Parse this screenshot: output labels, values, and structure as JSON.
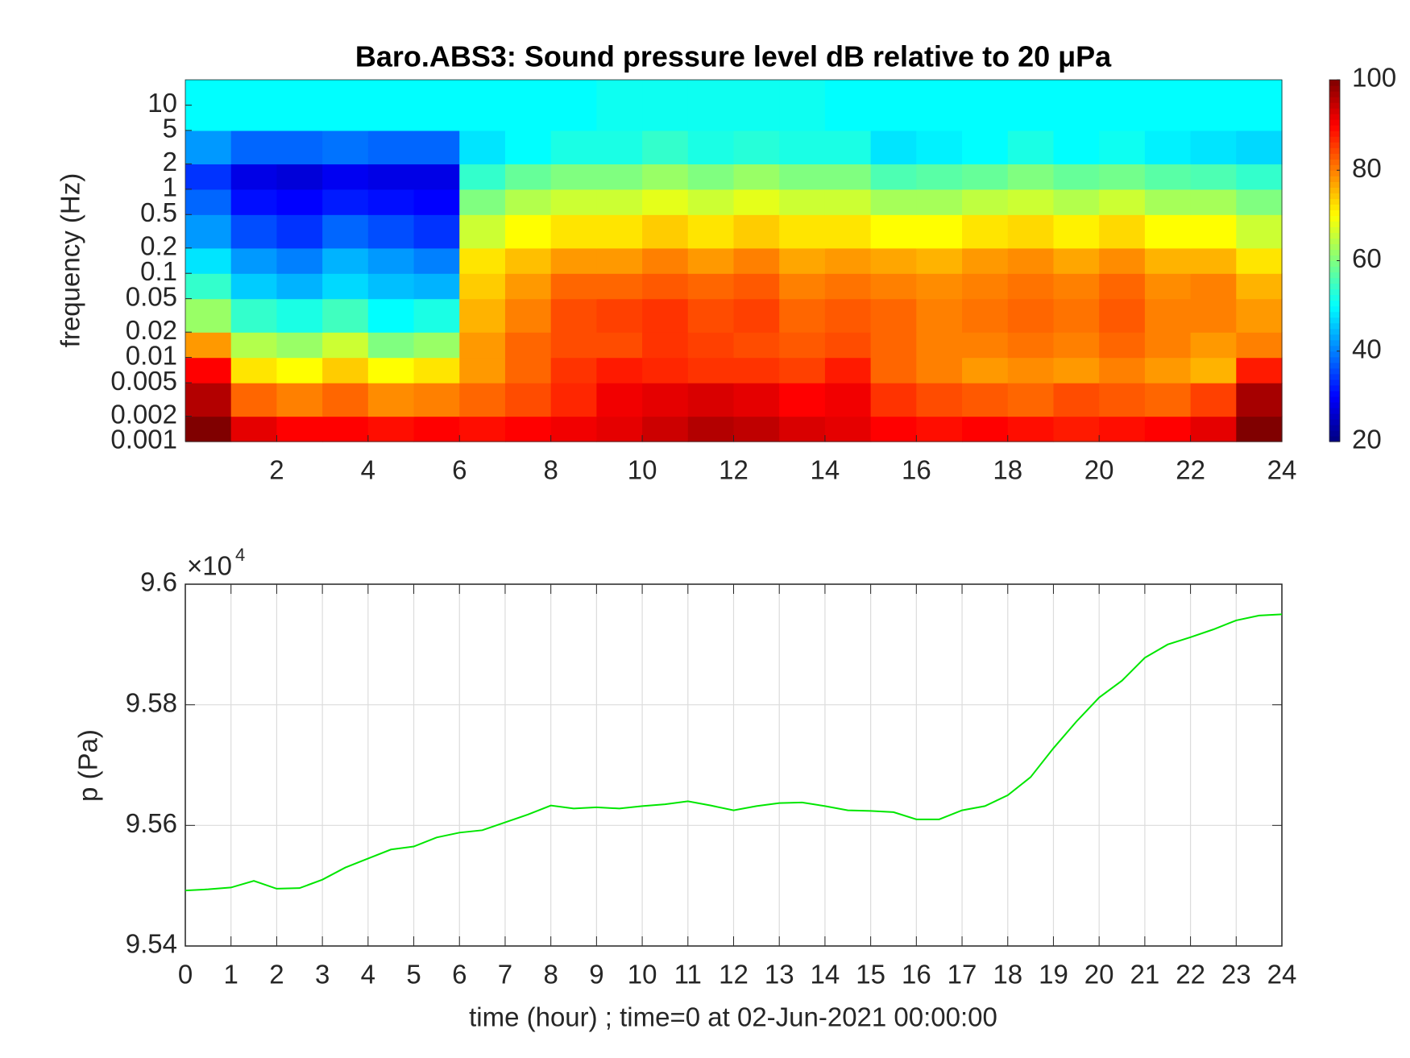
{
  "chart_data": [
    {
      "type": "heatmap",
      "title": "Baro.ABS3: Sound pressure level dB relative to 20 μPa",
      "ylabel": "frequency (Hz)",
      "colormap": "jet",
      "log_y": true,
      "xlim": [
        0,
        24
      ],
      "xticks": [
        2,
        4,
        6,
        8,
        10,
        12,
        14,
        16,
        18,
        20,
        22,
        24
      ],
      "ylim": [
        0.001,
        20
      ],
      "yticks": [
        0.001,
        0.002,
        0.005,
        0.01,
        0.02,
        0.05,
        0.1,
        0.2,
        0.5,
        1,
        2,
        5,
        10
      ],
      "clim": [
        20,
        100
      ],
      "cticks": [
        20,
        40,
        60,
        80,
        100
      ],
      "xbins": [
        0,
        1,
        2,
        3,
        4,
        5,
        6,
        7,
        8,
        9,
        10,
        11,
        12,
        13,
        14,
        15,
        16,
        17,
        18,
        19,
        20,
        21,
        22,
        23,
        24
      ],
      "ybins": [
        0.001,
        0.002,
        0.005,
        0.01,
        0.02,
        0.05,
        0.1,
        0.2,
        0.5,
        1,
        2,
        5,
        20
      ],
      "z": [
        [
          100,
          92,
          90,
          90,
          89,
          90,
          89,
          90,
          91,
          92,
          94,
          96,
          95,
          93,
          92,
          90,
          89,
          90,
          89,
          88,
          89,
          90,
          92,
          100
        ],
        [
          96,
          82,
          80,
          82,
          79,
          80,
          82,
          84,
          87,
          91,
          92,
          93,
          92,
          90,
          91,
          86,
          84,
          83,
          82,
          84,
          83,
          82,
          85,
          97
        ],
        [
          90,
          72,
          70,
          74,
          70,
          72,
          78,
          82,
          86,
          88,
          87,
          86,
          86,
          85,
          88,
          82,
          80,
          78,
          79,
          78,
          80,
          78,
          76,
          88
        ],
        [
          78,
          64,
          62,
          66,
          60,
          62,
          78,
          82,
          84,
          84,
          86,
          85,
          84,
          83,
          84,
          82,
          80,
          80,
          81,
          80,
          82,
          80,
          78,
          80
        ],
        [
          62,
          54,
          52,
          55,
          50,
          52,
          76,
          80,
          84,
          85,
          86,
          84,
          85,
          82,
          83,
          82,
          80,
          81,
          82,
          81,
          83,
          80,
          80,
          78
        ],
        [
          54,
          46,
          44,
          47,
          45,
          44,
          74,
          78,
          82,
          82,
          83,
          82,
          83,
          80,
          81,
          80,
          79,
          80,
          81,
          80,
          82,
          79,
          80,
          76
        ],
        [
          48,
          42,
          40,
          44,
          42,
          40,
          72,
          75,
          78,
          78,
          80,
          78,
          80,
          77,
          78,
          77,
          76,
          78,
          79,
          77,
          79,
          76,
          76,
          72
        ],
        [
          42,
          36,
          34,
          38,
          36,
          34,
          66,
          70,
          72,
          72,
          74,
          72,
          74,
          72,
          72,
          70,
          70,
          72,
          73,
          71,
          73,
          70,
          70,
          66
        ],
        [
          38,
          31,
          30,
          32,
          31,
          30,
          60,
          64,
          66,
          66,
          68,
          66,
          68,
          66,
          66,
          63,
          63,
          65,
          66,
          64,
          66,
          63,
          63,
          60
        ],
        [
          34,
          28,
          27,
          29,
          28,
          28,
          54,
          58,
          60,
          60,
          62,
          60,
          62,
          60,
          60,
          56,
          57,
          58,
          60,
          58,
          59,
          57,
          56,
          54
        ],
        [
          42,
          38,
          38,
          39,
          38,
          38,
          48,
          50,
          52,
          52,
          54,
          52,
          53,
          52,
          52,
          48,
          49,
          50,
          52,
          50,
          51,
          49,
          48,
          47
        ],
        [
          50,
          50,
          50,
          50,
          50,
          50,
          50,
          50,
          50,
          51,
          51,
          51,
          51,
          51,
          50,
          50,
          50,
          50,
          50,
          50,
          50,
          50,
          50,
          50
        ]
      ]
    },
    {
      "type": "line",
      "xlabel": "time (hour) ; time=0 at 02-Jun-2021 00:00:00",
      "ylabel": "p (Pa)",
      "y_multiplier": {
        "base": "×10",
        "exponent": "4"
      },
      "grid": true,
      "xlim": [
        0,
        24
      ],
      "xticks": [
        0,
        1,
        2,
        3,
        4,
        5,
        6,
        7,
        8,
        9,
        10,
        11,
        12,
        13,
        14,
        15,
        16,
        17,
        18,
        19,
        20,
        21,
        22,
        23,
        24
      ],
      "ylim": [
        9.54,
        9.6
      ],
      "yticks": [
        9.54,
        9.56,
        9.58,
        9.6
      ],
      "color": "#00e600",
      "x": [
        0,
        0.5,
        1,
        1.5,
        2,
        2.5,
        3,
        3.5,
        4,
        4.5,
        5,
        5.5,
        6,
        6.5,
        7,
        7.5,
        8,
        8.5,
        9,
        9.5,
        10,
        10.5,
        11,
        11.5,
        12,
        12.5,
        13,
        13.5,
        14,
        14.5,
        15,
        15.5,
        16,
        16.5,
        17,
        17.5,
        18,
        18.5,
        19,
        19.5,
        20,
        20.5,
        21,
        21.5,
        22,
        22.5,
        23,
        23.5,
        24
      ],
      "values": [
        9.5492,
        9.5494,
        9.5497,
        9.5508,
        9.5495,
        9.5496,
        9.551,
        9.553,
        9.5545,
        9.556,
        9.5565,
        9.558,
        9.5588,
        9.5592,
        9.5605,
        9.5618,
        9.5633,
        9.5628,
        9.563,
        9.5628,
        9.5632,
        9.5635,
        9.564,
        9.5633,
        9.5625,
        9.5632,
        9.5637,
        9.5638,
        9.5632,
        9.5625,
        9.5624,
        9.5622,
        9.561,
        9.561,
        9.5625,
        9.5632,
        9.565,
        9.568,
        9.5728,
        9.5772,
        9.5812,
        9.584,
        9.5878,
        9.59,
        9.5912,
        9.5925,
        9.594,
        9.5948,
        9.595
      ]
    }
  ]
}
